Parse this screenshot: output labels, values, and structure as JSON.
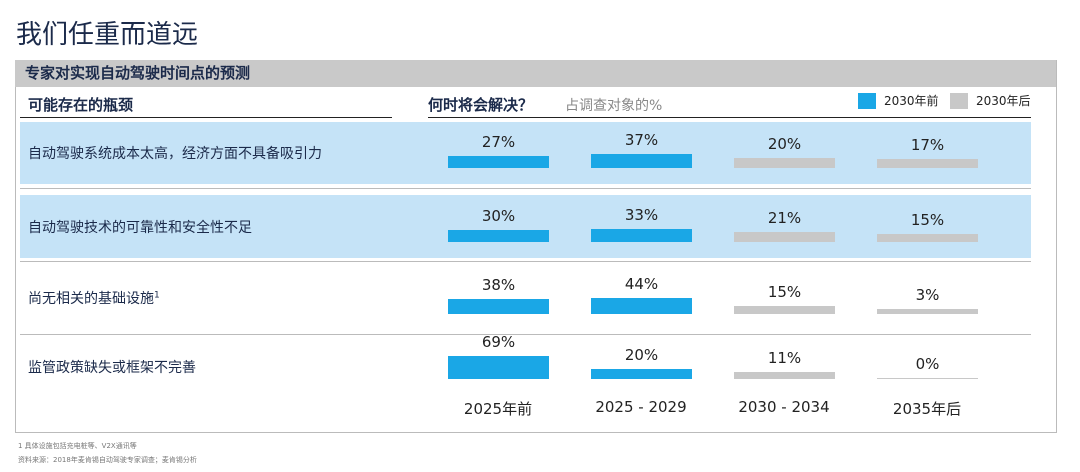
{
  "title": "我们任重而道远",
  "header": "专家对实现自动驾驶时间点的预测",
  "left_header": "可能存在的瓶颈",
  "right_header": "何时将会解决？",
  "right_sub": "占调查对象的%",
  "colors": {
    "before": "#1aa7e6",
    "after": "#c8c8c8",
    "highlight": "#c5e3f7"
  },
  "chart_data": {
    "type": "bar",
    "categories": [
      "2025年前",
      "2025 - 2029",
      "2030 - 2034",
      "2035年后"
    ],
    "legend": [
      {
        "name": "2030年前",
        "color": "#1aa7e6"
      },
      {
        "name": "2030年后",
        "color": "#c8c8c8"
      }
    ],
    "rows": [
      {
        "label": "自动驾驶系统成本太高，经济方面不具备吸引力",
        "sup": "",
        "values": [
          27,
          37,
          20,
          17
        ],
        "labels": [
          "27%",
          "37%",
          "20%",
          "17%"
        ]
      },
      {
        "label": "自动驾驶技术的可靠性和安全性不足",
        "sup": "",
        "values": [
          30,
          33,
          21,
          15
        ],
        "labels": [
          "30%",
          "33%",
          "21%",
          "15%"
        ]
      },
      {
        "label": "尚无相关的基础设施",
        "sup": "1",
        "values": [
          38,
          44,
          15,
          3
        ],
        "labels": [
          "38%",
          "44%",
          "15%",
          "3%"
        ]
      },
      {
        "label": "监管政策缺失或框架不完善",
        "sup": "",
        "values": [
          69,
          20,
          11,
          0
        ],
        "labels": [
          "69%",
          "20%",
          "11%",
          "0%"
        ]
      }
    ]
  },
  "footnotes": [
    "1 具体设施包括充电桩等、V2X通讯等",
    "资料来源：2018年麦肯锡自动驾驶专家调查；麦肯锡分析"
  ]
}
